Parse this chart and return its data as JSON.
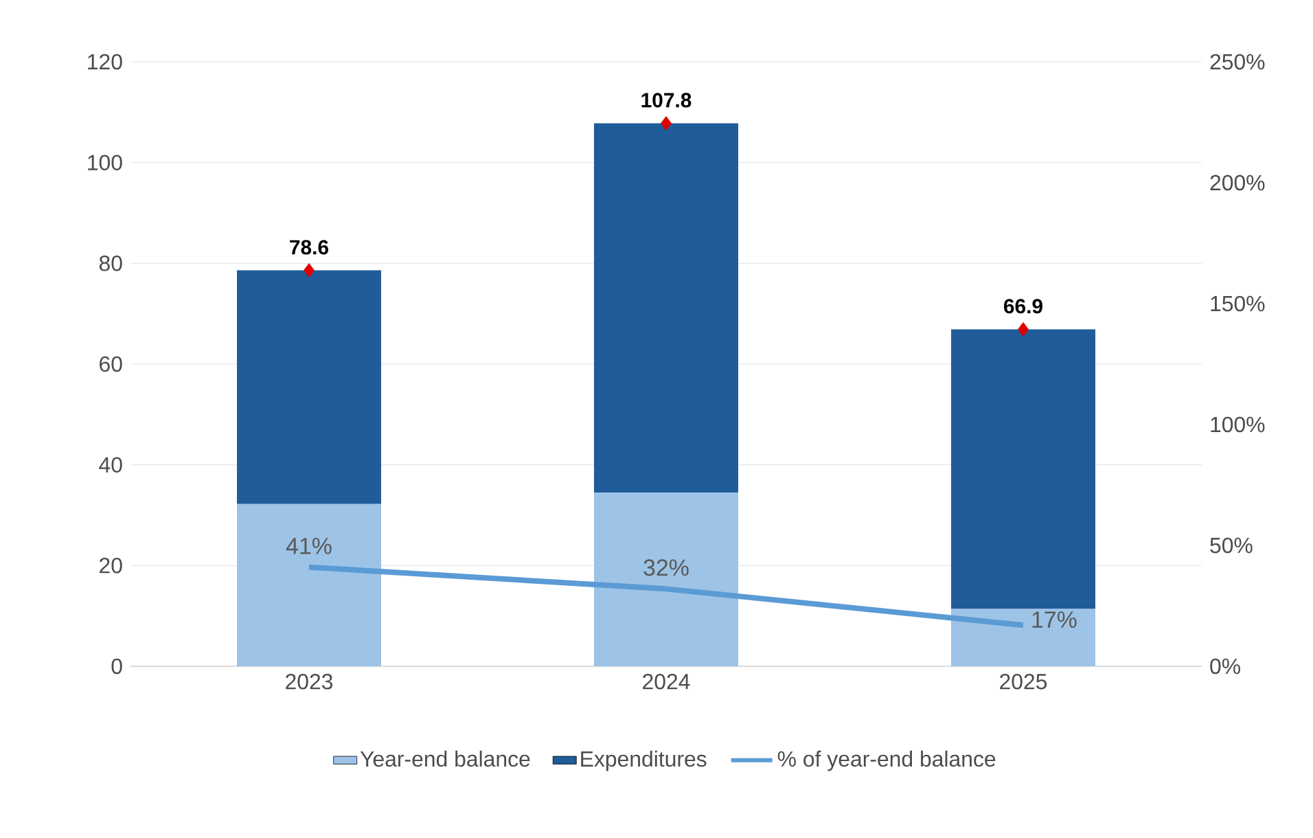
{
  "chart_data": {
    "type": "bar",
    "stacked": true,
    "categories": [
      "2023",
      "2024",
      "2025"
    ],
    "series": [
      {
        "name": "Year-end balance",
        "color": "#9dc3e6",
        "values": [
          32.2,
          34.5,
          11.4
        ]
      },
      {
        "name": "Expenditures",
        "color": "#1f5c99",
        "values": [
          46.4,
          73.3,
          55.5
        ]
      },
      {
        "name": "% of year-end balance",
        "type": "line",
        "axis": "y2",
        "color": "#5b9bd5",
        "values": [
          41,
          32,
          17
        ],
        "value_labels": [
          "41%",
          "32%",
          "17%"
        ]
      },
      {
        "type": "scatter",
        "color": "#e00000",
        "marker": "diamond",
        "values": [
          78.6,
          107.8,
          66.9
        ]
      }
    ],
    "totals": [
      "78.6",
      "107.8",
      "66.9"
    ],
    "ylim": [
      0,
      120
    ],
    "yticks": [
      0,
      20,
      40,
      60,
      80,
      100,
      120
    ],
    "y2lim": [
      0,
      250
    ],
    "y2ticks": [
      {
        "value": 0,
        "label": "0%"
      },
      {
        "value": 50,
        "label": "50%"
      },
      {
        "value": 100,
        "label": "100%"
      },
      {
        "value": 150,
        "label": "150%"
      },
      {
        "value": 200,
        "label": "200%"
      },
      {
        "value": 250,
        "label": "250%"
      }
    ],
    "grid": "y",
    "legend": "bottom"
  }
}
